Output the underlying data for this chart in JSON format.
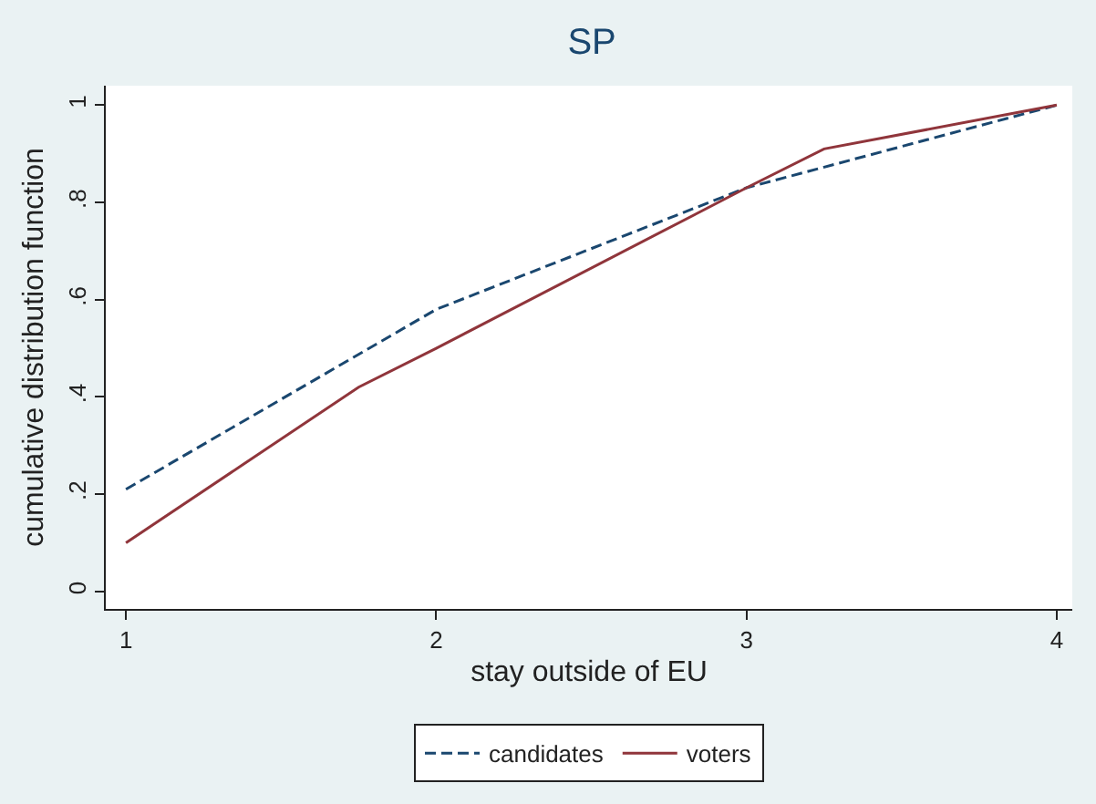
{
  "chart_data": {
    "type": "line",
    "title": "SP",
    "xlabel": "stay outside of EU",
    "ylabel": "cumulative distribution function",
    "series": [
      {
        "name": "candidates",
        "color": "#1a476f",
        "line_style": "dashed",
        "x": [
          1,
          2,
          3,
          4
        ],
        "values": [
          0.21,
          0.58,
          0.83,
          1.0
        ]
      },
      {
        "name": "voters",
        "color": "#90353b",
        "line_style": "solid",
        "x": [
          1,
          1.75,
          2,
          3,
          3.25,
          4
        ],
        "values": [
          0.1,
          0.42,
          0.5,
          0.83,
          0.91,
          1.0
        ]
      }
    ],
    "xlim": [
      0.935,
      4.05
    ],
    "ylim": [
      -0.036,
      1.04
    ],
    "xticks": [
      1,
      2,
      3,
      4
    ],
    "yticks": [
      0,
      {
        "value": 0.2,
        "label": ".2"
      },
      {
        "value": 0.4,
        "label": ".4"
      },
      {
        "value": 0.6,
        "label": ".6"
      },
      {
        "value": 0.8,
        "label": ".8"
      },
      1
    ],
    "grid": false,
    "legend": "bottom",
    "marker": "none"
  }
}
